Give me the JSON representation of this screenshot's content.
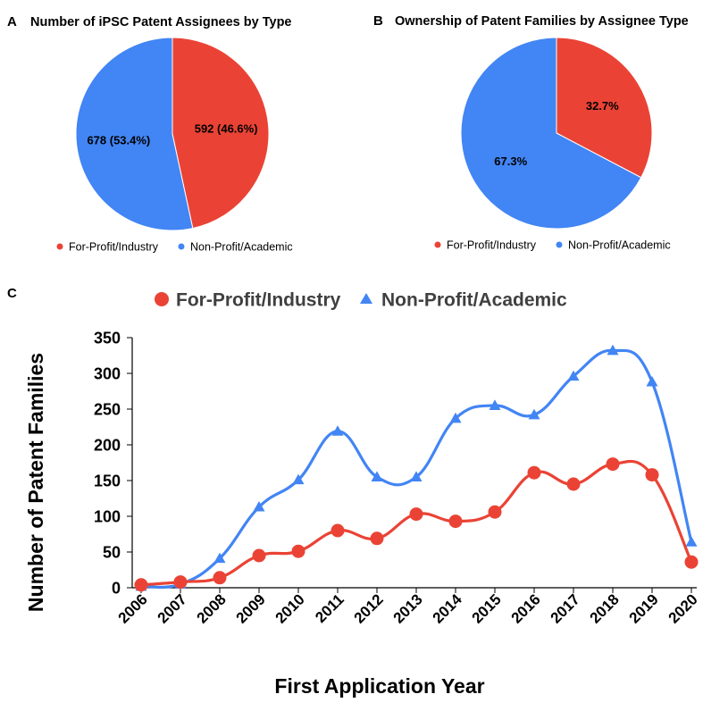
{
  "panels": {
    "a": {
      "letter": "A",
      "title": "Number of iPSC Patent Assignees by Type"
    },
    "b": {
      "letter": "B",
      "title": "Ownership of Patent Families by Assignee Type"
    },
    "c": {
      "letter": "C"
    }
  },
  "legend_labels": [
    "For-Profit/Industry",
    "Non-Profit/Academic"
  ],
  "colors": {
    "for_profit": "#ea4335",
    "non_profit": "#4285f4",
    "text": "#000000"
  },
  "chart_data": [
    {
      "type": "pie",
      "title": "Number of iPSC Patent Assignees by Type",
      "labels": [
        "For-Profit/Industry",
        "Non-Profit/Academic"
      ],
      "values": [
        592,
        678
      ],
      "data_labels": [
        "592 (46.6%)",
        "678 (53.4%)"
      ],
      "colors": [
        "#ea4335",
        "#4285f4"
      ],
      "start_angle_deg": 0,
      "legend_position": "bottom"
    },
    {
      "type": "pie",
      "title": "Ownership of Patent Families by Assignee Type",
      "labels": [
        "For-Profit/Industry",
        "Non-Profit/Academic"
      ],
      "values": [
        32.7,
        67.3
      ],
      "data_labels": [
        "32.7%",
        "67.3%"
      ],
      "colors": [
        "#ea4335",
        "#4285f4"
      ],
      "start_angle_deg": 0,
      "legend_position": "bottom"
    },
    {
      "type": "line",
      "title": "",
      "xlabel": "First Application Year",
      "ylabel": "Number of Patent Families",
      "x": [
        "2006",
        "2007",
        "2008",
        "2009",
        "2010",
        "2011",
        "2012",
        "2013",
        "2014",
        "2015",
        "2016",
        "2017",
        "2018",
        "2019",
        "2020"
      ],
      "ylim": [
        0,
        350
      ],
      "yticks": [
        0,
        50,
        100,
        150,
        200,
        250,
        300,
        350
      ],
      "smooth": true,
      "legend_position": "top",
      "series": [
        {
          "name": "For-Profit/Industry",
          "marker": "circle",
          "color": "#ea4335",
          "values": [
            4,
            8,
            14,
            45,
            51,
            80,
            69,
            103,
            93,
            106,
            161,
            145,
            173,
            158,
            36
          ]
        },
        {
          "name": "Non-Profit/Academic",
          "marker": "triangle",
          "color": "#4285f4",
          "values": [
            2,
            5,
            41,
            113,
            151,
            219,
            155,
            155,
            237,
            255,
            242,
            296,
            332,
            288,
            64
          ]
        }
      ]
    }
  ]
}
